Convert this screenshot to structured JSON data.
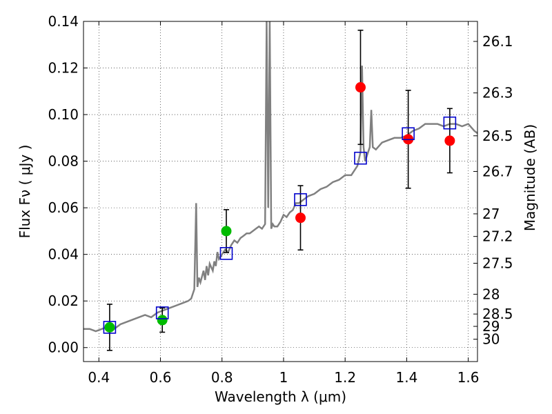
{
  "chart_data": {
    "type": "scatter",
    "xlabel": "Wavelength  λ (μm)",
    "ylabel": "Flux  Fν  ( μJy )",
    "ylabel_right": "Magnitude (AB)",
    "xlim": [
      0.35,
      1.63
    ],
    "ylim": [
      -0.006,
      0.14
    ],
    "grid": true,
    "x_ticks": [
      0.4,
      0.6,
      0.8,
      1.0,
      1.2,
      1.4,
      1.6
    ],
    "x_tick_labels": [
      "0.4",
      "0.6",
      "0.8",
      "1",
      "1.2",
      "1.4",
      "1.6"
    ],
    "y_ticks": [
      0.0,
      0.02,
      0.04,
      0.06,
      0.08,
      0.1,
      0.12,
      0.14
    ],
    "y_tick_labels": [
      "0.00",
      "0.02",
      "0.04",
      "0.06",
      "0.08",
      "0.10",
      "0.12",
      "0.14"
    ],
    "right_ticks": [
      {
        "label": "26.1",
        "flux": 0.1314
      },
      {
        "label": "26.3",
        "flux": 0.1093
      },
      {
        "label": "26.5",
        "flux": 0.0909
      },
      {
        "label": "26.7",
        "flux": 0.0756
      },
      {
        "label": "27",
        "flux": 0.0574
      },
      {
        "label": "27.2",
        "flux": 0.0477
      },
      {
        "label": "27.5",
        "flux": 0.0362
      },
      {
        "label": "28",
        "flux": 0.0229
      },
      {
        "label": "28.5",
        "flux": 0.0144
      },
      {
        "label": "29",
        "flux": 0.0091
      },
      {
        "label": "30",
        "flux": 0.0036
      }
    ],
    "series": [
      {
        "marker": "circle",
        "color": "#00bb00",
        "x": [
          0.435,
          0.606,
          0.814
        ],
        "y": [
          0.0087,
          0.0118,
          0.05
        ],
        "yerr": [
          0.0099,
          0.0052,
          0.0092
        ]
      },
      {
        "marker": "circle",
        "color": "#ff0000",
        "x": [
          1.055,
          1.25,
          1.405,
          1.54
        ],
        "y": [
          0.0557,
          0.1117,
          0.0894,
          0.0888
        ],
        "yerr": [
          0.0138,
          0.0245,
          0.021,
          0.0138
        ]
      },
      {
        "marker": "square",
        "color": "#0000cc",
        "x": [
          0.435,
          0.606,
          0.814,
          1.055,
          1.25,
          1.405,
          1.54
        ],
        "y": [
          0.0087,
          0.0149,
          0.0404,
          0.0635,
          0.0813,
          0.0918,
          0.0964
        ]
      }
    ],
    "spectrum": {
      "color": "#808080",
      "x": [
        0.35,
        0.37,
        0.39,
        0.41,
        0.43,
        0.45,
        0.47,
        0.49,
        0.51,
        0.53,
        0.55,
        0.57,
        0.59,
        0.61,
        0.63,
        0.65,
        0.67,
        0.69,
        0.7,
        0.71,
        0.716,
        0.72,
        0.725,
        0.73,
        0.74,
        0.745,
        0.75,
        0.755,
        0.76,
        0.77,
        0.775,
        0.78,
        0.785,
        0.79,
        0.8,
        0.81,
        0.82,
        0.83,
        0.84,
        0.85,
        0.86,
        0.87,
        0.88,
        0.89,
        0.9,
        0.91,
        0.92,
        0.93,
        0.94,
        0.945,
        0.95,
        0.955,
        0.96,
        0.965,
        0.97,
        0.98,
        0.99,
        1.0,
        1.01,
        1.02,
        1.03,
        1.04,
        1.05,
        1.06,
        1.08,
        1.1,
        1.12,
        1.14,
        1.16,
        1.18,
        1.2,
        1.22,
        1.24,
        1.25,
        1.255,
        1.26,
        1.265,
        1.27,
        1.28,
        1.285,
        1.29,
        1.3,
        1.32,
        1.34,
        1.36,
        1.38,
        1.4,
        1.42,
        1.44,
        1.46,
        1.48,
        1.5,
        1.52,
        1.54,
        1.56,
        1.58,
        1.6,
        1.62,
        1.63
      ],
      "y": [
        0.008,
        0.008,
        0.007,
        0.008,
        0.009,
        0.008,
        0.01,
        0.011,
        0.012,
        0.013,
        0.014,
        0.013,
        0.015,
        0.016,
        0.017,
        0.018,
        0.019,
        0.02,
        0.021,
        0.025,
        0.062,
        0.026,
        0.03,
        0.028,
        0.033,
        0.029,
        0.035,
        0.031,
        0.036,
        0.033,
        0.037,
        0.035,
        0.041,
        0.038,
        0.04,
        0.042,
        0.041,
        0.044,
        0.046,
        0.045,
        0.047,
        0.048,
        0.049,
        0.049,
        0.05,
        0.051,
        0.052,
        0.051,
        0.053,
        0.14,
        0.06,
        0.14,
        0.051,
        0.053,
        0.052,
        0.052,
        0.054,
        0.057,
        0.056,
        0.058,
        0.059,
        0.062,
        0.062,
        0.063,
        0.065,
        0.066,
        0.068,
        0.069,
        0.071,
        0.072,
        0.074,
        0.074,
        0.078,
        0.084,
        0.121,
        0.086,
        0.08,
        0.082,
        0.086,
        0.102,
        0.086,
        0.085,
        0.088,
        0.089,
        0.09,
        0.09,
        0.091,
        0.093,
        0.094,
        0.096,
        0.096,
        0.096,
        0.095,
        0.096,
        0.096,
        0.095,
        0.096,
        0.093,
        0.092
      ]
    }
  }
}
